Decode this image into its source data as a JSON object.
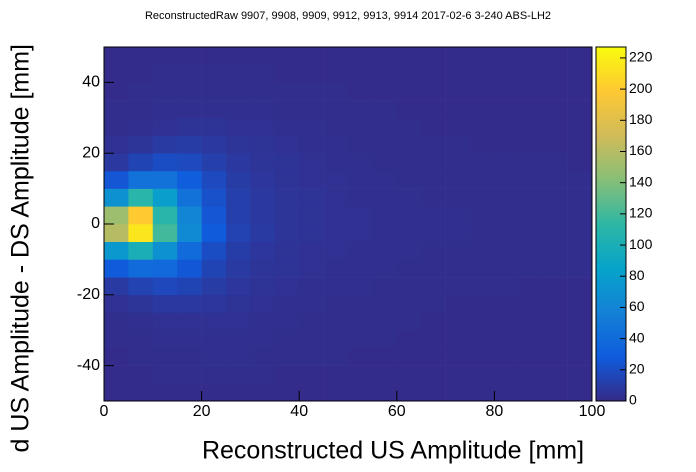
{
  "chart_data": {
    "type": "heatmap",
    "title": "ReconstructedRaw 9907, 9908, 9909, 9912, 9913, 9914 2017-02-6 3-240 ABS-LH2",
    "x_label": "Reconstructed US Amplitude [mm]",
    "y_label": "d US Amplitude - DS Amplitude [mm]",
    "x_edges": [
      0,
      5,
      10,
      15,
      20,
      25,
      30,
      35,
      40,
      45,
      50,
      55,
      60,
      65,
      70,
      75,
      80,
      85,
      90,
      95,
      100
    ],
    "y_edges": [
      -50,
      -45,
      -40,
      -35,
      -30,
      -25,
      -20,
      -15,
      -10,
      -5,
      0,
      5,
      10,
      15,
      20,
      25,
      30,
      35,
      40,
      45,
      50
    ],
    "z": [
      [
        1,
        1,
        1,
        1,
        1,
        1,
        1,
        1,
        1,
        1,
        1,
        1,
        1,
        1,
        1,
        1,
        1,
        1,
        1,
        1
      ],
      [
        1,
        1,
        2,
        2,
        2,
        2,
        2,
        1,
        1,
        1,
        1,
        1,
        1,
        1,
        1,
        1,
        1,
        1,
        1,
        1
      ],
      [
        1,
        2,
        2,
        2,
        3,
        3,
        2,
        2,
        2,
        2,
        1,
        1,
        1,
        1,
        1,
        1,
        1,
        1,
        1,
        1
      ],
      [
        2,
        2,
        3,
        3,
        3,
        3,
        3,
        2,
        2,
        2,
        2,
        2,
        1,
        1,
        1,
        1,
        1,
        1,
        1,
        1
      ],
      [
        2,
        3,
        4,
        4,
        4,
        4,
        3,
        3,
        2,
        2,
        2,
        2,
        2,
        1,
        1,
        1,
        1,
        1,
        1,
        1
      ],
      [
        4,
        6,
        8,
        8,
        7,
        5,
        4,
        3,
        3,
        2,
        2,
        2,
        2,
        2,
        1,
        1,
        1,
        1,
        1,
        1
      ],
      [
        9,
        14,
        17,
        15,
        10,
        7,
        5,
        4,
        3,
        3,
        3,
        2,
        2,
        2,
        2,
        2,
        2,
        1,
        1,
        1
      ],
      [
        28,
        40,
        38,
        26,
        15,
        9,
        6,
        5,
        4,
        3,
        3,
        3,
        2,
        2,
        2,
        2,
        2,
        2,
        2,
        2
      ],
      [
        75,
        100,
        70,
        40,
        20,
        11,
        7,
        5,
        4,
        4,
        3,
        3,
        3,
        2,
        2,
        2,
        2,
        2,
        2,
        2
      ],
      [
        160,
        215,
        120,
        65,
        28,
        14,
        9,
        6,
        5,
        4,
        4,
        3,
        3,
        3,
        3,
        2,
        2,
        2,
        2,
        2
      ],
      [
        150,
        200,
        110,
        60,
        25,
        12,
        8,
        6,
        5,
        4,
        4,
        3,
        3,
        3,
        3,
        2,
        2,
        2,
        2,
        2
      ],
      [
        70,
        110,
        80,
        45,
        22,
        12,
        8,
        6,
        5,
        4,
        3,
        3,
        3,
        2,
        2,
        2,
        2,
        2,
        2,
        2
      ],
      [
        25,
        45,
        45,
        30,
        18,
        10,
        7,
        5,
        4,
        4,
        3,
        3,
        2,
        2,
        2,
        2,
        2,
        2,
        2,
        2
      ],
      [
        8,
        15,
        20,
        18,
        12,
        8,
        6,
        5,
        4,
        3,
        3,
        2,
        2,
        2,
        2,
        2,
        2,
        2,
        2,
        1
      ],
      [
        4,
        6,
        9,
        10,
        8,
        6,
        5,
        4,
        3,
        3,
        2,
        2,
        2,
        2,
        2,
        1,
        1,
        1,
        1,
        1
      ],
      [
        2,
        3,
        4,
        5,
        5,
        4,
        4,
        3,
        3,
        2,
        2,
        2,
        2,
        1,
        1,
        1,
        1,
        1,
        1,
        1
      ],
      [
        2,
        2,
        3,
        3,
        3,
        3,
        3,
        2,
        2,
        2,
        2,
        2,
        1,
        1,
        1,
        1,
        1,
        1,
        1,
        1
      ],
      [
        1,
        2,
        2,
        2,
        2,
        2,
        2,
        2,
        2,
        2,
        1,
        1,
        1,
        1,
        1,
        1,
        1,
        1,
        1,
        1
      ],
      [
        1,
        1,
        2,
        2,
        2,
        2,
        2,
        1,
        1,
        1,
        1,
        1,
        1,
        1,
        1,
        1,
        1,
        1,
        1,
        1
      ],
      [
        1,
        1,
        1,
        1,
        1,
        1,
        1,
        1,
        1,
        1,
        1,
        1,
        1,
        1,
        1,
        1,
        1,
        1,
        1,
        1
      ]
    ],
    "xlim": [
      0,
      100
    ],
    "ylim": [
      -50,
      50
    ],
    "zlim": [
      0,
      227
    ],
    "xticks": [
      0,
      20,
      40,
      60,
      80,
      100
    ],
    "yticks": [
      -40,
      -20,
      0,
      20,
      40
    ],
    "zticks": [
      0,
      20,
      40,
      60,
      80,
      100,
      120,
      140,
      160,
      180,
      200,
      220
    ],
    "colorscale": [
      "#352a87",
      "#0f5cdd",
      "#1481d6",
      "#06a4ca",
      "#2eb7a4",
      "#87bf77",
      "#d1bb59",
      "#fec832",
      "#f9fb0e"
    ]
  }
}
